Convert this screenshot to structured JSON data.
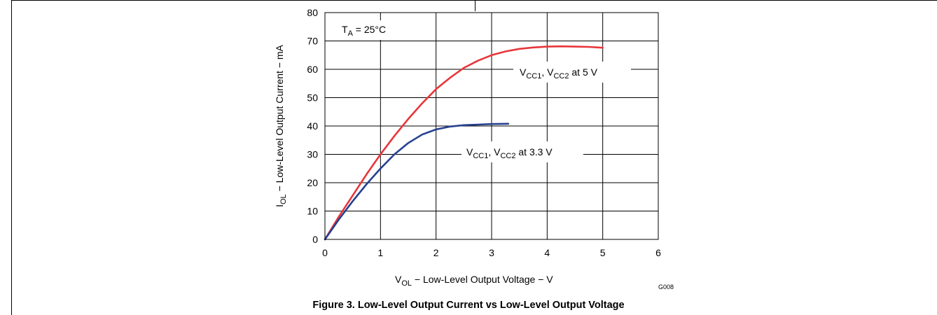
{
  "chart_data": {
    "type": "line",
    "title": "",
    "annotation": {
      "main": "T",
      "sub": "A",
      "rest": " = 25°C"
    },
    "xlabel": {
      "main": "V",
      "sub": "OL",
      "rest": " − Low-Level Output Voltage − V"
    },
    "ylabel": {
      "main": "I",
      "sub": "OL",
      "rest": " − Low-Level Output Current − mA"
    },
    "xlim": [
      0,
      6
    ],
    "ylim": [
      0,
      80
    ],
    "xticks": [
      0,
      1,
      2,
      3,
      4,
      5,
      6
    ],
    "yticks": [
      0,
      10,
      20,
      30,
      40,
      50,
      60,
      70,
      80
    ],
    "grid": true,
    "figure_id": "G008",
    "series": [
      {
        "label_parts": [
          "V",
          "CC1",
          ", V",
          "CC2",
          " at 5 V"
        ],
        "color": "#e8363a",
        "x": [
          0,
          0.25,
          0.5,
          0.75,
          1.0,
          1.25,
          1.5,
          1.75,
          2.0,
          2.25,
          2.5,
          2.75,
          3.0,
          3.25,
          3.5,
          3.75,
          4.0,
          4.25,
          4.5,
          4.75,
          5.0
        ],
        "y": [
          0,
          8.0,
          15.5,
          23.0,
          30.0,
          36.5,
          42.5,
          48.0,
          53.0,
          57.0,
          60.5,
          63.0,
          65.0,
          66.3,
          67.2,
          67.7,
          68.0,
          68.1,
          68.0,
          67.9,
          67.6
        ]
      },
      {
        "label_parts": [
          "V",
          "CC1",
          ", V",
          "CC2",
          " at 3.3 V"
        ],
        "color": "#26418f",
        "x": [
          0,
          0.25,
          0.5,
          0.75,
          1.0,
          1.25,
          1.5,
          1.75,
          2.0,
          2.25,
          2.5,
          2.75,
          3.0,
          3.3
        ],
        "y": [
          0,
          7.0,
          13.5,
          19.5,
          25.0,
          30.0,
          34.0,
          37.0,
          38.8,
          39.8,
          40.3,
          40.5,
          40.7,
          40.8
        ]
      }
    ]
  },
  "caption": "Figure 3. Low-Level Output Current vs Low-Level Output Voltage"
}
